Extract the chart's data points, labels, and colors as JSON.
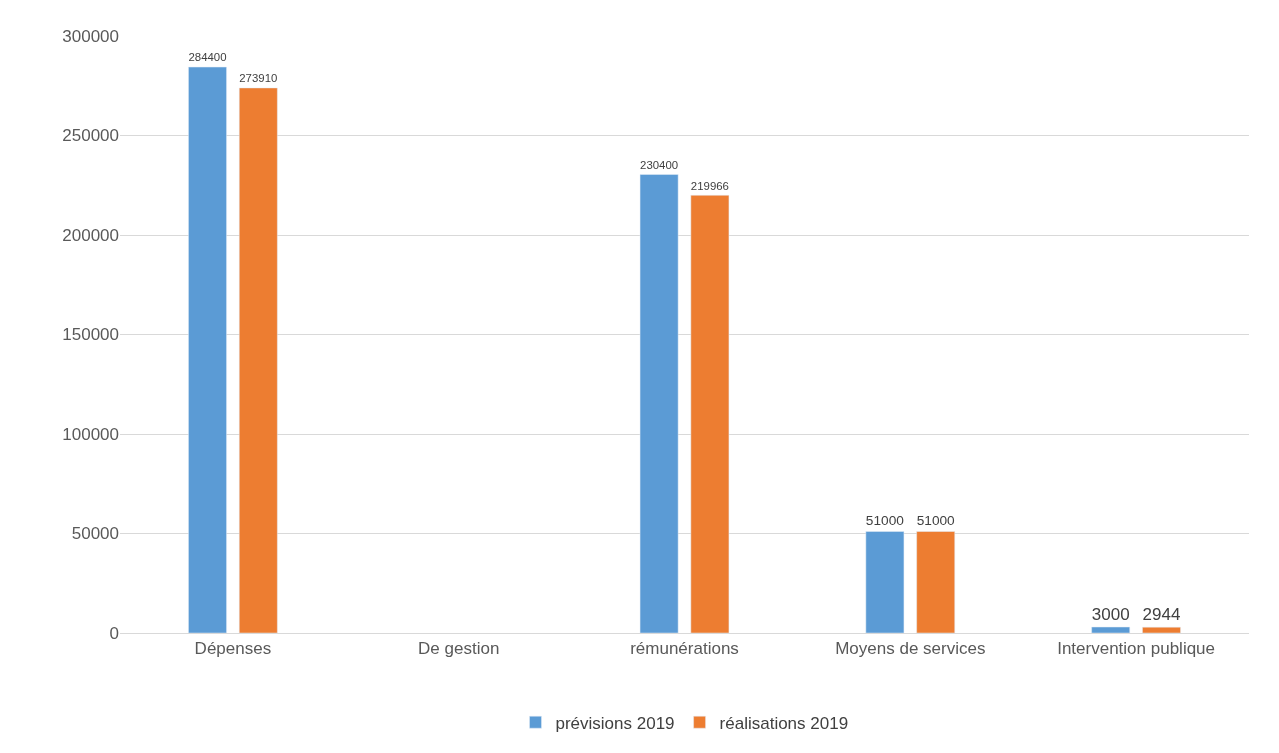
{
  "chart_data": {
    "type": "bar",
    "categories": [
      "Dépenses",
      "De gestion",
      "rémunérations",
      "Moyens de services",
      "Intervention publique"
    ],
    "series": [
      {
        "name": "prévisions 2019",
        "color": "#5b9bd5",
        "values": [
          284400,
          null,
          230400,
          51000,
          3000
        ]
      },
      {
        "name": "réalisations 2019",
        "color": "#ed7d31",
        "values": [
          273910,
          null,
          219966,
          51000,
          2944
        ]
      }
    ],
    "ylim": [
      0,
      300000
    ],
    "yticks": [
      0,
      50000,
      100000,
      150000,
      200000,
      250000,
      300000
    ],
    "grid": "y",
    "legend": "bottom",
    "data_labels": true
  }
}
